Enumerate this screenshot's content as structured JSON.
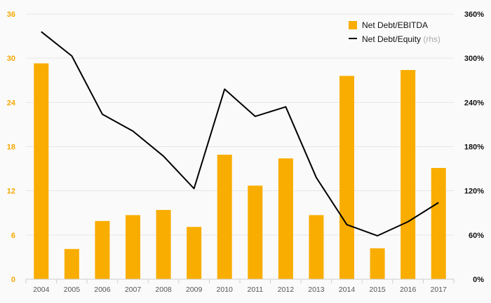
{
  "chart_data": {
    "type": "bar",
    "categories": [
      "2004",
      "2005",
      "2006",
      "2007",
      "2008",
      "2009",
      "2010",
      "2011",
      "2012",
      "2013",
      "2014",
      "2015",
      "2016",
      "2017"
    ],
    "series": [
      {
        "name": "Net Debt/EBITDA",
        "type": "bar",
        "axis": "left",
        "color": "#f9ad00",
        "values": [
          29.3,
          4.1,
          7.9,
          8.7,
          9.4,
          7.1,
          16.9,
          12.7,
          16.4,
          8.7,
          27.6,
          4.2,
          28.4,
          15.1
        ]
      },
      {
        "name": "Net Debt/Equity",
        "note": "(rhs)",
        "type": "line",
        "axis": "right",
        "color": "#000000",
        "values": [
          336,
          303,
          224,
          201,
          167,
          123,
          258,
          221,
          234,
          138,
          74,
          59,
          78,
          104
        ]
      }
    ],
    "y_left": {
      "min": 0,
      "max": 36,
      "ticks": [
        "0",
        "6",
        "12",
        "18",
        "24",
        "30",
        "36"
      ],
      "color": "#f5a800"
    },
    "y_right": {
      "min": 0,
      "max": 360,
      "ticks": [
        "0%",
        "60%",
        "120%",
        "180%",
        "240%",
        "300%",
        "360%"
      ]
    },
    "grid": true,
    "legend": "top-right"
  }
}
